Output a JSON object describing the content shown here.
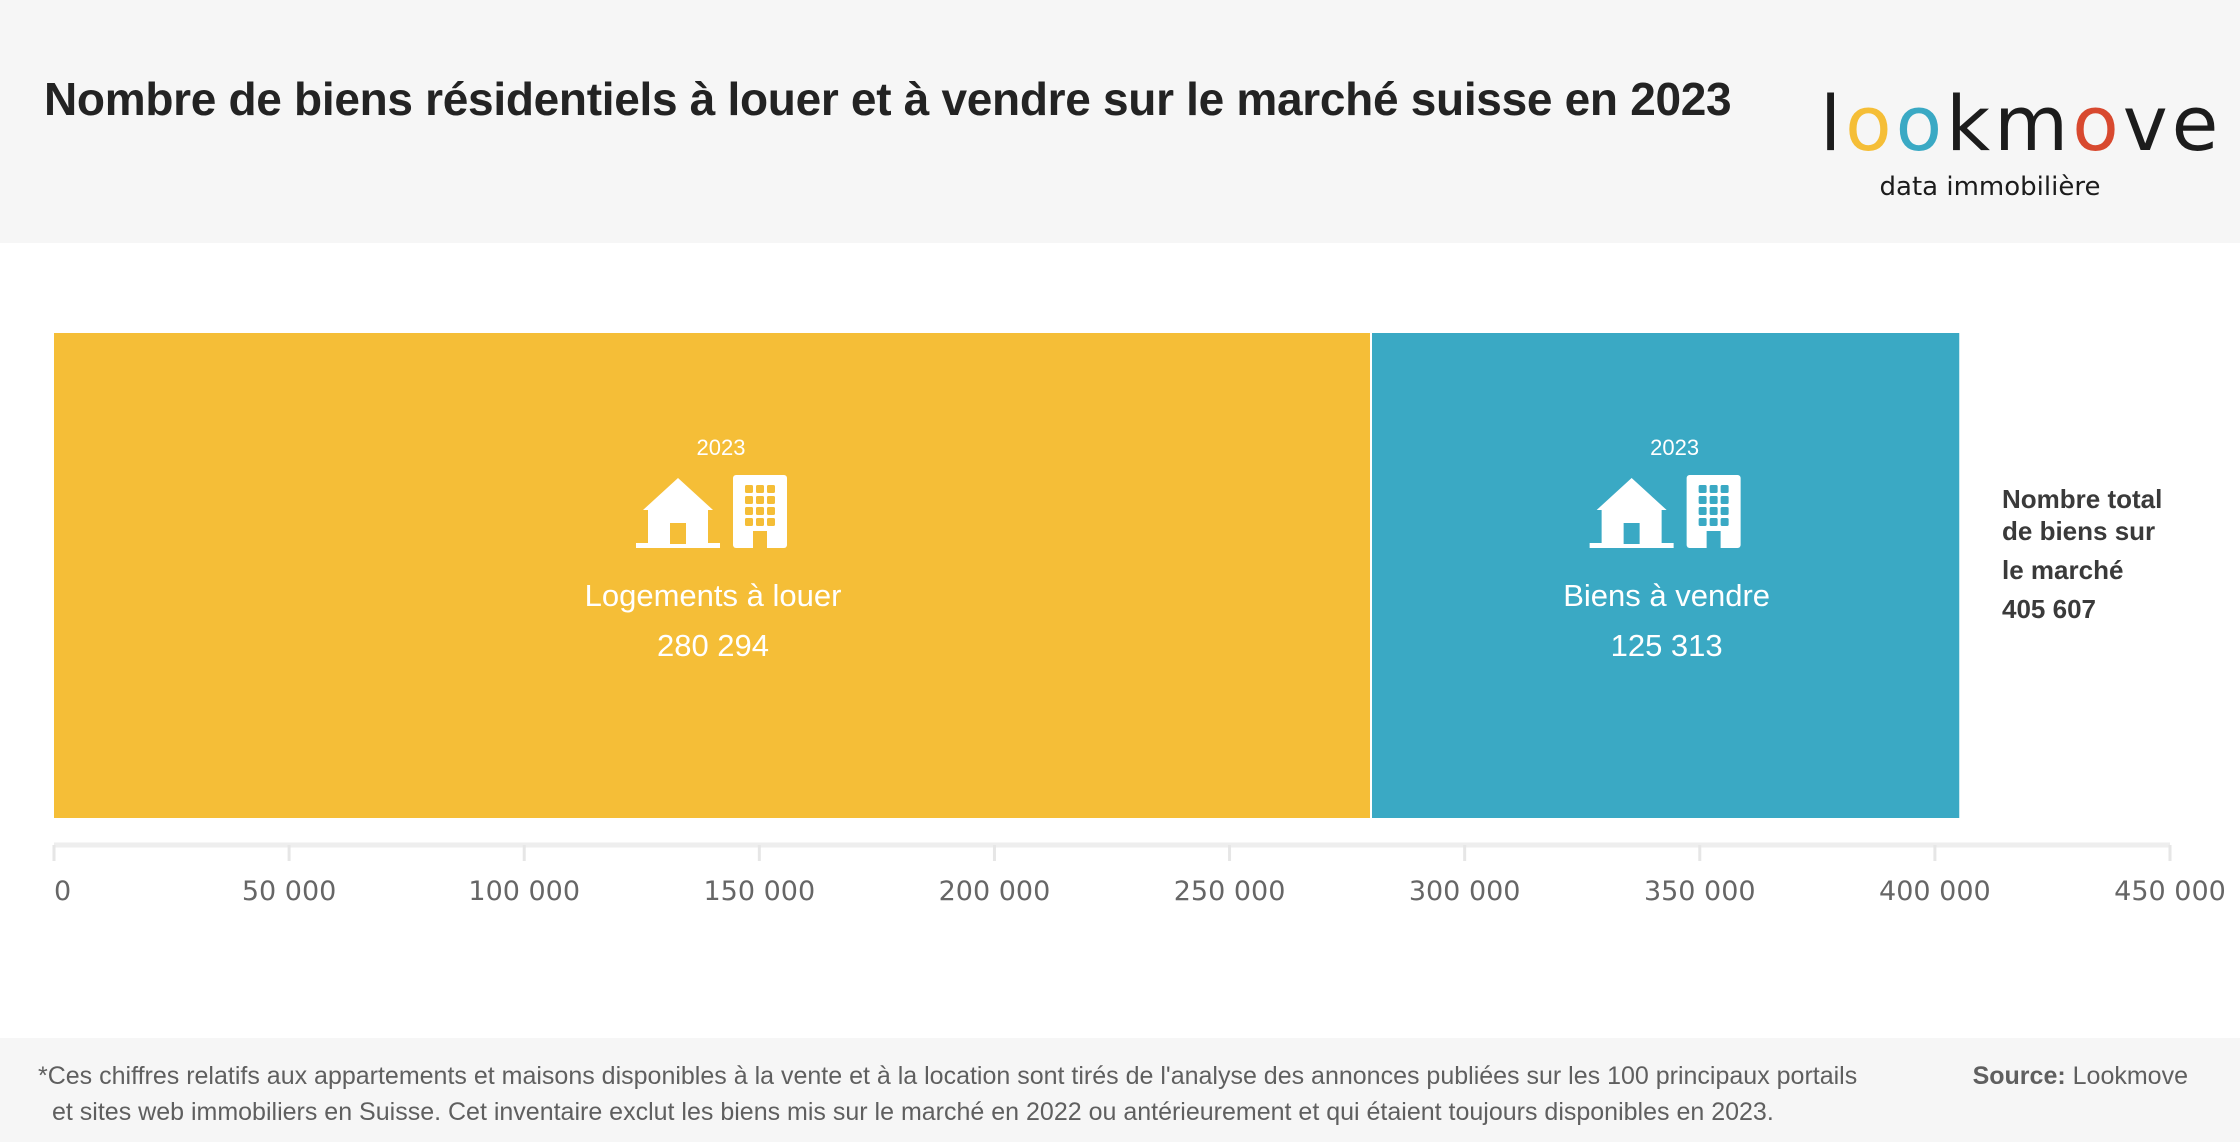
{
  "title": "Nombre de biens résidentiels à louer et à vendre sur le marché suisse en 2023",
  "logo": {
    "letters": [
      {
        "ch": "l",
        "color": "#1c1c1c"
      },
      {
        "ch": "o",
        "color": "#f5be37"
      },
      {
        "ch": "o",
        "color": "#3aa9c4"
      },
      {
        "ch": "k",
        "color": "#1c1c1c"
      },
      {
        "ch": "m",
        "color": "#1c1c1c"
      },
      {
        "ch": "o",
        "color": "#d8492f"
      },
      {
        "ch": "v",
        "color": "#1c1c1c"
      },
      {
        "ch": "e",
        "color": "#1c1c1c"
      }
    ],
    "tagline": "data immobilière"
  },
  "chart_data": {
    "type": "bar",
    "orientation": "horizontal-stacked",
    "categories": [
      "2023"
    ],
    "series": [
      {
        "name": "Logements à louer",
        "year_label": "2023",
        "value": 280294,
        "value_label": "280 294",
        "color": "#f5be37",
        "icons": [
          "house-icon",
          "building-icon"
        ]
      },
      {
        "name": "Biens à vendre",
        "year_label": "2023",
        "value": 125313,
        "value_label": "125 313",
        "color": "#3aa9c4",
        "icons": [
          "house-icon",
          "building-icon"
        ]
      }
    ],
    "xlim": [
      0,
      450000
    ],
    "xticks": [
      0,
      50000,
      100000,
      150000,
      200000,
      250000,
      300000,
      350000,
      400000,
      450000
    ],
    "xtick_labels": [
      "0",
      "50 000",
      "100 000",
      "150 000",
      "200 000",
      "250 000",
      "300 000",
      "350 000",
      "400 000",
      "450 000"
    ],
    "grid": false,
    "total": {
      "lines": [
        "Nombre total",
        "de biens sur",
        "le marché"
      ],
      "value_label": "405 607",
      "value": 405607
    }
  },
  "footnote": {
    "line1": "*Ces chiffres relatifs aux appartements et maisons disponibles à la vente et à la location sont tirés de l'analyse des annonces publiées sur les 100 principaux portails",
    "line2": "et sites web immobiliers en Suisse. Cet inventaire exclut les biens mis sur le marché en 2022 ou antérieurement et qui étaient toujours disponibles en 2023."
  },
  "source": {
    "label": "Source:",
    "value": "Lookmove"
  }
}
